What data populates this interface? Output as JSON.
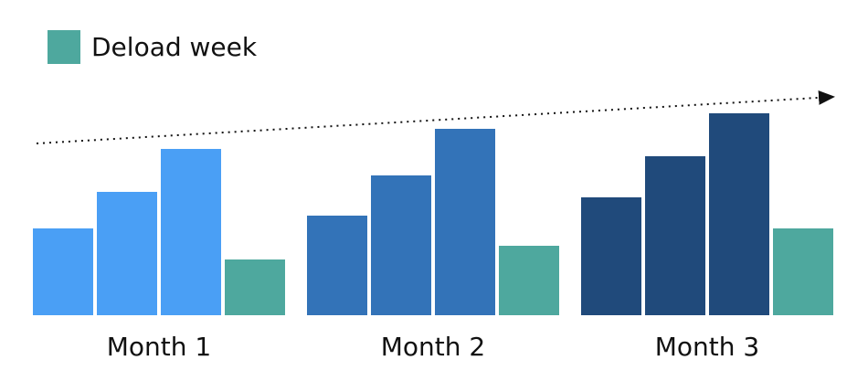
{
  "chart_data": {
    "type": "grouped-bar",
    "legend": {
      "name": "Deload week",
      "color": "#4ea89e"
    },
    "groups": [
      {
        "label": "Month 1",
        "color": "#4a9ff5",
        "values": [
          95,
          135,
          182
        ],
        "deload": 61
      },
      {
        "label": "Month 2",
        "color": "#3373b8",
        "values": [
          109,
          153,
          204
        ],
        "deload": 76
      },
      {
        "label": "Month 3",
        "color": "#204a7b",
        "values": [
          129,
          174,
          221
        ],
        "deload": 95
      }
    ],
    "ylim": [
      0,
      230
    ]
  }
}
